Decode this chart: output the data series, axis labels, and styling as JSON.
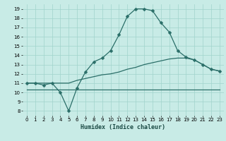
{
  "xlabel": "Humidex (Indice chaleur)",
  "xlim": [
    -0.5,
    23.5
  ],
  "ylim": [
    7.5,
    19.5
  ],
  "yticks": [
    8,
    9,
    10,
    11,
    12,
    13,
    14,
    15,
    16,
    17,
    18,
    19
  ],
  "xticks": [
    0,
    1,
    2,
    3,
    4,
    5,
    6,
    7,
    8,
    9,
    10,
    11,
    12,
    13,
    14,
    15,
    16,
    17,
    18,
    19,
    20,
    21,
    22,
    23
  ],
  "bg_color": "#c8ebe6",
  "grid_color": "#a0d4cc",
  "line_color": "#2a6e68",
  "curve1_x": [
    0,
    1,
    2,
    3,
    4,
    5,
    6,
    7,
    8,
    9,
    10,
    11,
    12,
    13,
    14,
    15,
    16,
    17,
    18,
    19,
    20,
    21,
    22,
    23
  ],
  "curve1_y": [
    11,
    11,
    10.8,
    11,
    10,
    8,
    10.5,
    12.2,
    13.3,
    13.7,
    14.5,
    16.2,
    18.2,
    19.0,
    19.0,
    18.8,
    17.5,
    16.5,
    14.5,
    13.8,
    13.5,
    13.0,
    12.5,
    12.3
  ],
  "curve2_x": [
    0,
    1,
    2,
    3,
    4,
    5,
    6,
    7,
    8,
    9,
    10,
    11,
    12,
    13,
    14,
    15,
    16,
    17,
    18,
    19,
    20,
    21,
    22,
    23
  ],
  "curve2_y": [
    11,
    11,
    11,
    11,
    11,
    11,
    11.3,
    11.5,
    11.7,
    11.9,
    12.0,
    12.2,
    12.5,
    12.7,
    13.0,
    13.2,
    13.4,
    13.6,
    13.7,
    13.7,
    13.5,
    13.0,
    12.5,
    12.3
  ],
  "curve3_x": [
    0,
    10,
    20,
    23
  ],
  "curve3_y": [
    10.3,
    10.3,
    10.3,
    10.3
  ],
  "linewidth": 0.9,
  "marker_size": 2.5
}
